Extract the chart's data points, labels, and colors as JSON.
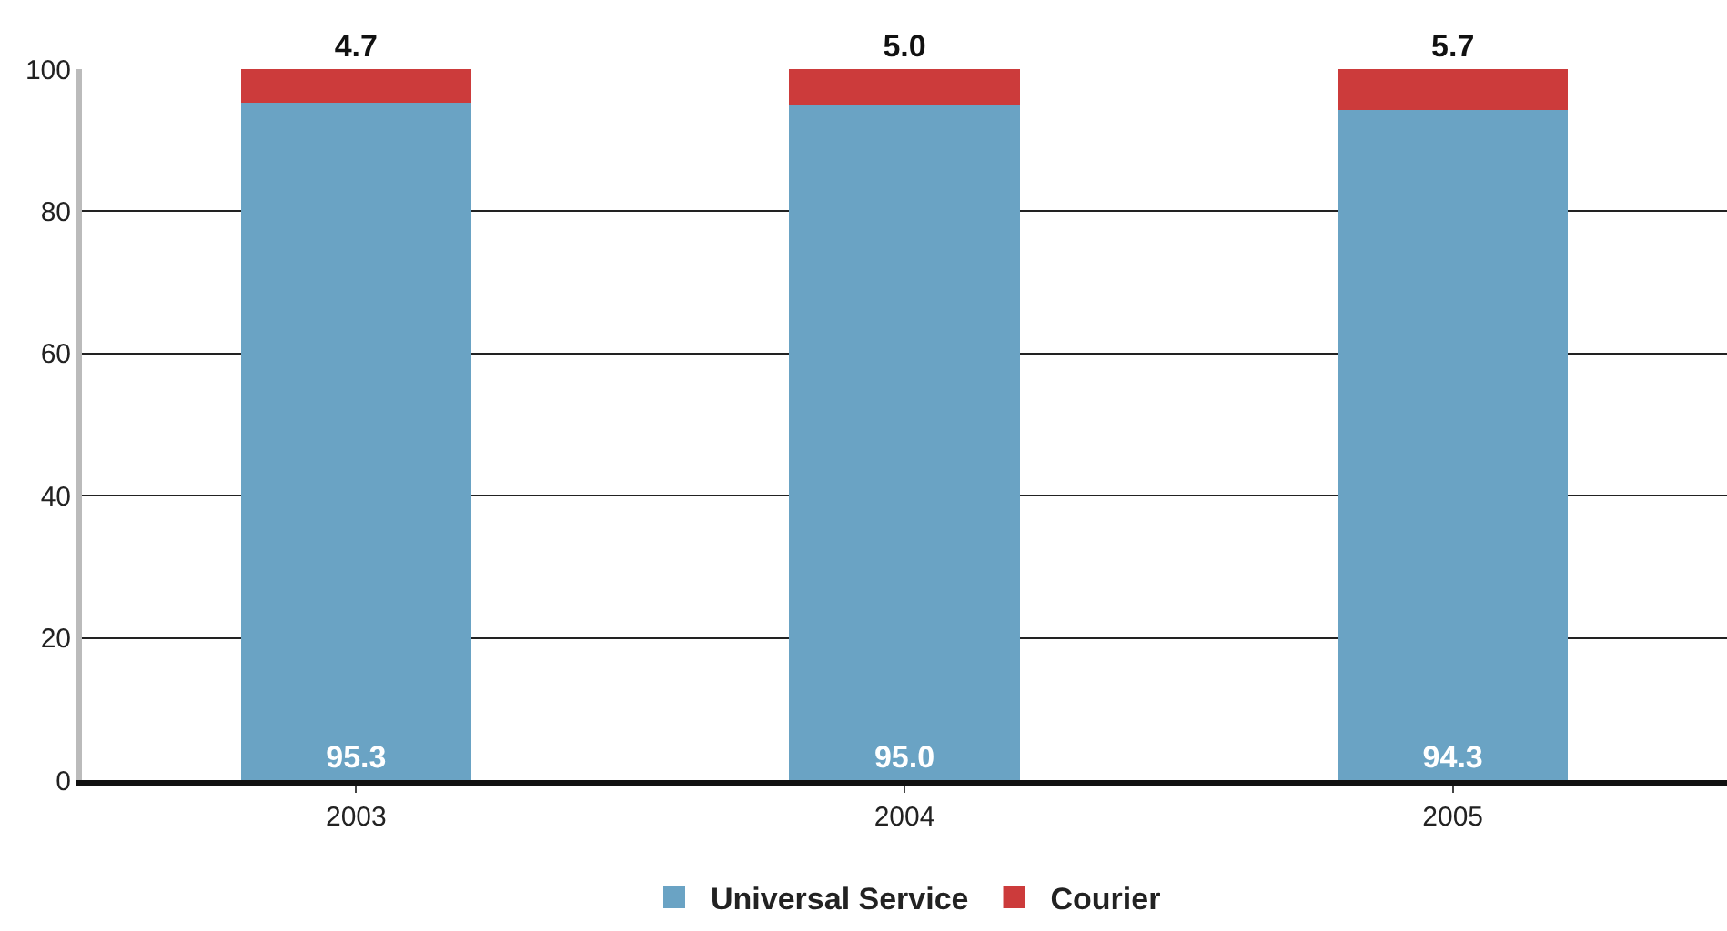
{
  "chart_data": {
    "type": "bar",
    "stacked": true,
    "categories": [
      "2003",
      "2004",
      "2005"
    ],
    "series": [
      {
        "name": "Universal Service",
        "color": "#6aa3c4",
        "values": [
          95.3,
          95.0,
          94.3
        ],
        "value_labels": [
          "95.3",
          "95.0",
          "94.3"
        ]
      },
      {
        "name": "Courier",
        "color": "#cc3b3b",
        "values": [
          4.7,
          5.0,
          5.7
        ],
        "value_labels": [
          "4.7",
          "5.0",
          "5.7"
        ]
      }
    ],
    "ylim": [
      0,
      100
    ],
    "yticks": [
      0,
      20,
      40,
      60,
      80,
      100
    ],
    "grid": "y",
    "legend": "bottom"
  }
}
